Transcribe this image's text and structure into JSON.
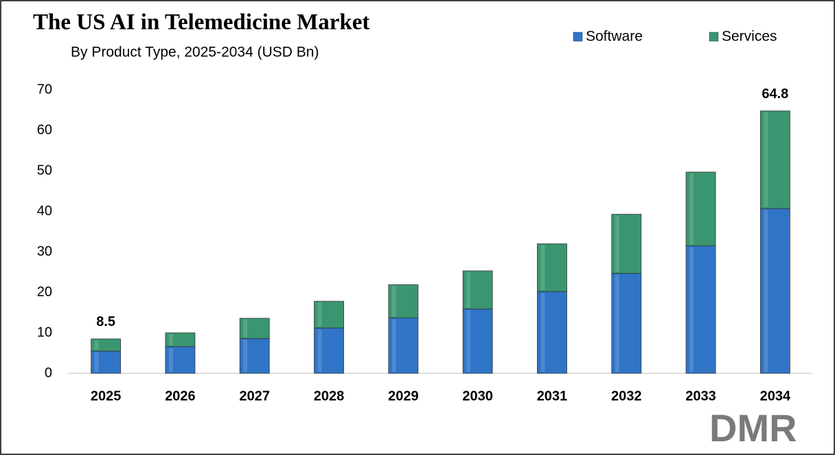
{
  "chart_data": {
    "type": "stacked_bar",
    "title": "The US AI in Telemedicine Market",
    "subtitle": "By Product Type, 2025-2034 (USD Bn)",
    "categories": [
      "2025",
      "2026",
      "2027",
      "2028",
      "2029",
      "2030",
      "2031",
      "2032",
      "2033",
      "2034"
    ],
    "series": [
      {
        "name": "Software",
        "color": "#2f74c6",
        "values": [
          5.5,
          6.6,
          8.6,
          11.2,
          13.7,
          15.9,
          20.2,
          24.7,
          31.5,
          40.7
        ]
      },
      {
        "name": "Services",
        "color": "#3a9670",
        "values": [
          3.0,
          3.4,
          5.0,
          6.6,
          8.2,
          9.4,
          11.8,
          14.6,
          18.2,
          24.1
        ]
      }
    ],
    "total_labels": [
      8.5,
      null,
      null,
      null,
      null,
      null,
      null,
      null,
      null,
      64.8
    ],
    "ylim": [
      0,
      70
    ],
    "yticks": [
      0,
      10,
      20,
      30,
      40,
      50,
      60,
      70
    ],
    "legend": "top-right",
    "logo": "DMR"
  }
}
